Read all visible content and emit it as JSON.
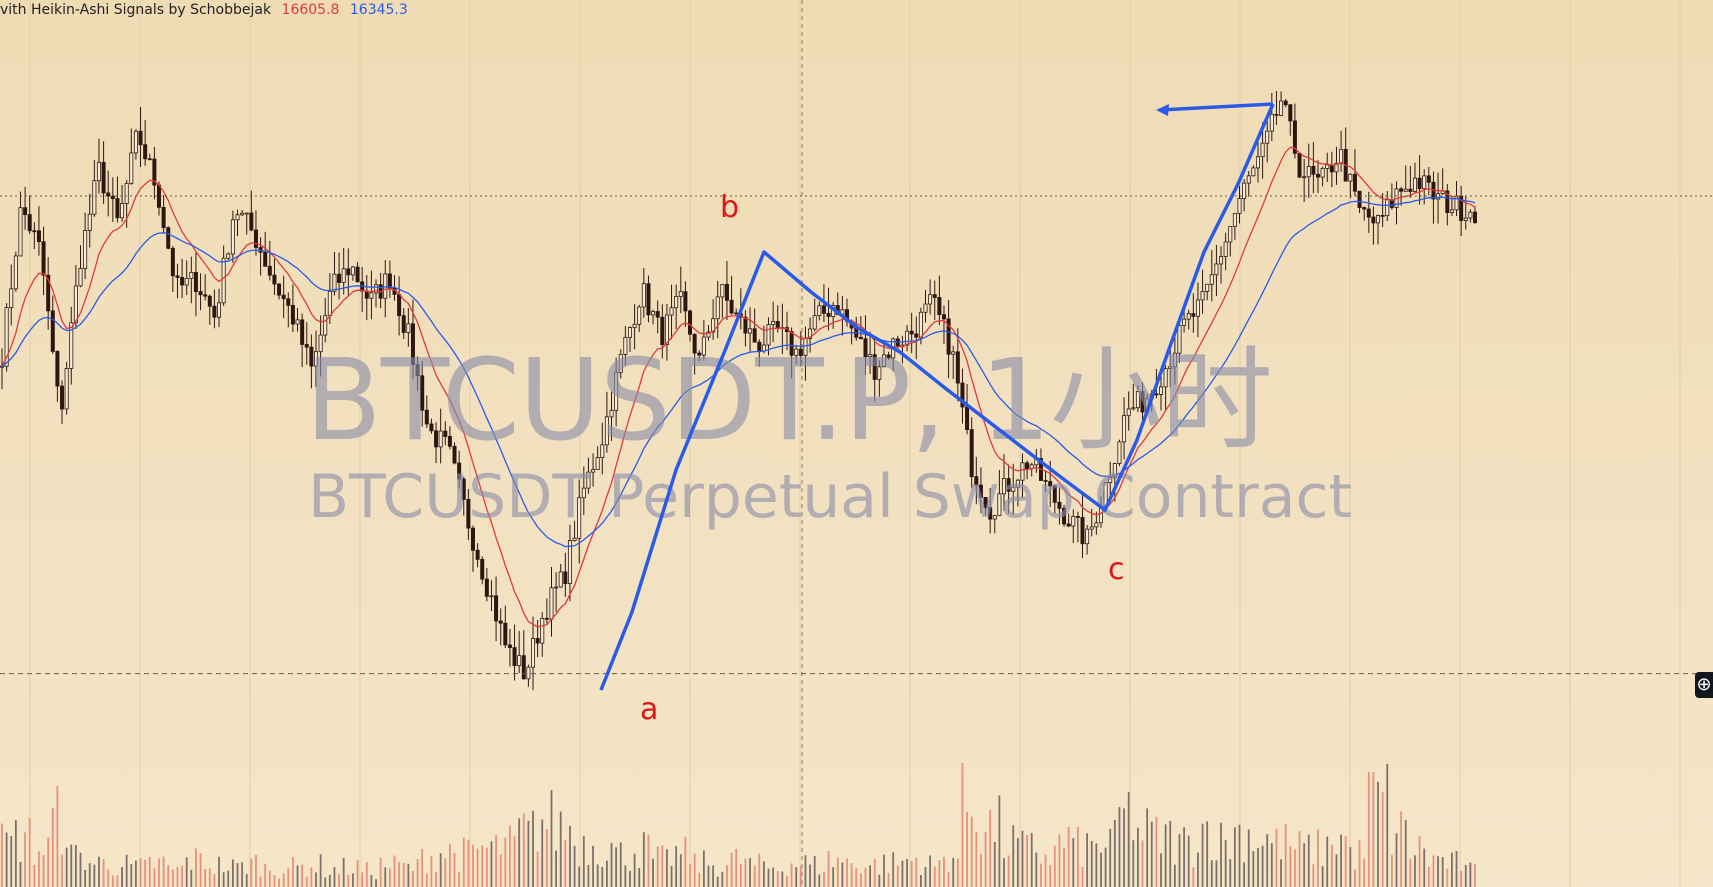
{
  "legend": {
    "indicator_name": "vith Heikin-Ashi Signals by Schobbejak",
    "value_1": "16605.8",
    "value_2": "16345.3"
  },
  "watermark": {
    "symbol_line": "BTCUSDT.P, 1小时",
    "description": "BTCUSDT Perpetual Swap Contract"
  },
  "wave_labels": {
    "a": "a",
    "b": "b",
    "c": "c"
  },
  "crosshair_button": {
    "icon": "plus-circle-icon"
  },
  "colors": {
    "background": "#f2e1c0",
    "up_candle": "#f7ecd6",
    "down_candle": "#2e1710",
    "ma_fast": "#e23a3a",
    "ma_slow": "#2a5be8",
    "wave_lines": "#2a5be8",
    "wave_labels": "#e01515",
    "volume_up": "#7c7068",
    "volume_down": "#e8907a"
  },
  "chart_data": {
    "type": "candlestick",
    "symbol": "BTCUSDT.P",
    "timeframe": "1小时",
    "price_markers": {
      "upper_dotted_line": 16605.8,
      "lower_dashed_line": 16345.3
    },
    "wave_points": [
      {
        "label": "a",
        "price": 16345.3
      },
      {
        "label": "b",
        "price": 16560
      },
      {
        "label": "c",
        "price": 16395
      }
    ],
    "price_path": [
      16520,
      16600,
      16575,
      16485,
      16570,
      16620,
      16590,
      16640,
      16610,
      16555,
      16560,
      16540,
      16600,
      16585,
      16560,
      16540,
      16510,
      16555,
      16568,
      16548,
      16562,
      16528,
      16478,
      16468,
      16430,
      16395,
      16360,
      16345,
      16380,
      16398,
      16445,
      16475,
      16520,
      16555,
      16530,
      16548,
      16515,
      16555,
      16538,
      16525,
      16532,
      16520,
      16538,
      16548,
      16530,
      16512,
      16525,
      16532,
      16548,
      16522,
      16460,
      16435,
      16450,
      16462,
      16445,
      16430,
      16418,
      16450,
      16488,
      16495,
      16512,
      16535,
      16548,
      16578,
      16608,
      16628,
      16658,
      16620,
      16612,
      16630,
      16598,
      16590,
      16608,
      16615,
      16605,
      16600,
      16598
    ],
    "volume_profile": [
      0.4,
      0.45,
      0.35,
      0.62,
      0.28,
      0.22,
      0.2,
      0.18,
      0.22,
      0.16,
      0.25,
      0.2,
      0.18,
      0.22,
      0.17,
      0.18,
      0.2,
      0.16,
      0.18,
      0.15,
      0.2,
      0.18,
      0.28,
      0.32,
      0.3,
      0.35,
      0.38,
      0.5,
      0.6,
      0.55,
      0.4,
      0.38,
      0.3,
      0.35,
      0.25,
      0.3,
      0.22,
      0.2,
      0.25,
      0.2,
      0.18,
      0.22,
      0.2,
      0.25,
      0.22,
      0.2,
      0.22,
      0.25,
      0.2,
      0.28,
      0.75,
      0.55,
      0.4,
      0.35,
      0.3,
      0.42,
      0.36,
      0.4,
      0.66,
      0.5,
      0.45,
      0.4,
      0.55,
      0.42,
      0.5,
      0.45,
      0.4,
      0.35,
      0.35,
      0.45,
      0.3,
      0.8,
      0.5,
      0.35,
      0.25,
      0.22,
      0.15
    ]
  }
}
